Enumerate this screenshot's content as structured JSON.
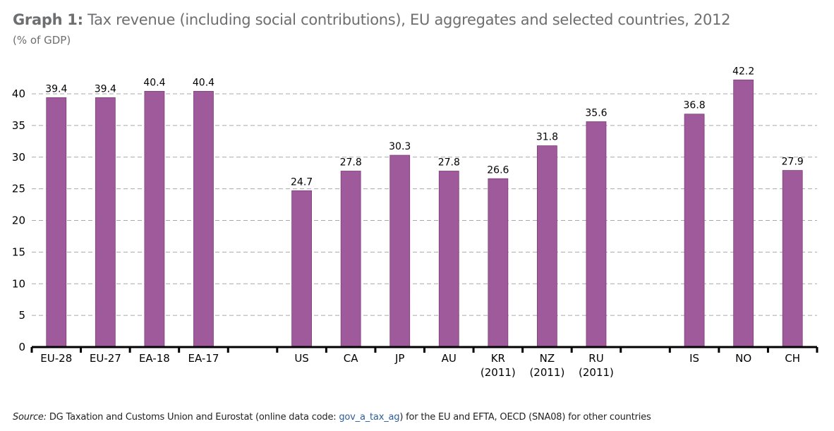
{
  "title_prefix": "Graph 1:",
  "title": "Tax revenue (including social contributions), EU aggregates and selected countries, 2012",
  "subtitle": "(% of GDP)",
  "source": {
    "label": "Source:",
    "text_before": "DG Taxation and Customs Union and Eurostat (online data code: ",
    "code": "gov_a_tax_ag",
    "text_after": ") for the EU and EFTA, OECD (SNA08) for other countries"
  },
  "colors": {
    "bar": "#9e5a9b",
    "bar_edge": "#7d3f7a",
    "grid": "#a7a9ac",
    "code_link": "#2b5d9c"
  },
  "chart_data": {
    "type": "bar",
    "title": "Tax revenue (including social contributions), EU aggregates and selected countries, 2012",
    "ylabel": "(% of GDP)",
    "ylim": [
      0,
      45
    ],
    "yticks": [
      0,
      5,
      10,
      15,
      20,
      25,
      30,
      35,
      40
    ],
    "grid": "horizontal dashed",
    "categories": [
      "EU-28",
      "EU-27",
      "EA-18",
      "EA-17",
      "",
      "US",
      "CA",
      "JP",
      "AU",
      "KR\n(2011)",
      "NZ\n(2011)",
      "RU\n(2011)",
      "",
      "IS",
      "NO",
      "CH"
    ],
    "values": [
      39.4,
      39.4,
      40.4,
      40.4,
      null,
      24.7,
      27.8,
      30.3,
      27.8,
      26.6,
      31.8,
      35.6,
      null,
      36.8,
      42.2,
      27.9
    ]
  }
}
